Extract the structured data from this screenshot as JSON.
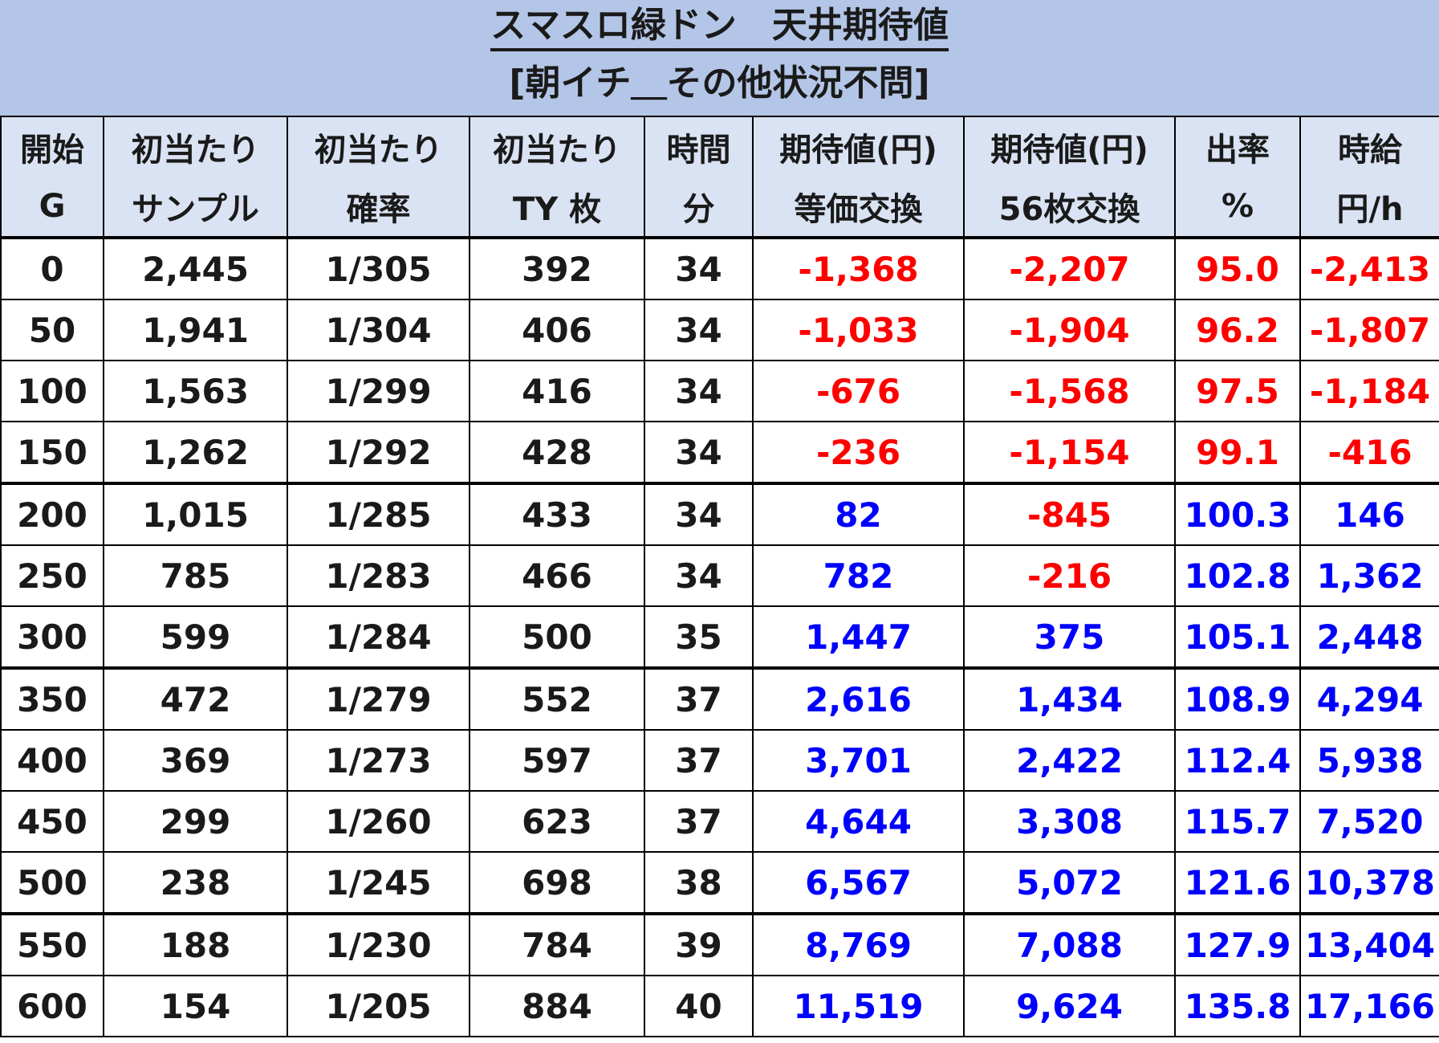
{
  "title": "スマスロ緑ドン　天井期待値",
  "subtitle": "[朝イチ＿その他状況不問]",
  "colors": {
    "header_bg": "#dae3f3",
    "title_bg": "#b4c6e7",
    "negative": "#ff0000",
    "positive": "#0000ff"
  },
  "columns": [
    {
      "line1": "開始",
      "line2": "G"
    },
    {
      "line1": "初当たり",
      "line2": "サンプル"
    },
    {
      "line1": "初当たり",
      "line2": "確率"
    },
    {
      "line1": "初当たり",
      "line2": "TY 枚"
    },
    {
      "line1": "時間",
      "line2": "分"
    },
    {
      "line1": "期待値(円)",
      "line2": "等価交換"
    },
    {
      "line1": "期待値(円)",
      "line2": "56枚交換"
    },
    {
      "line1": "出率",
      "line2": "%"
    },
    {
      "line1": "時給",
      "line2": "円/h"
    }
  ],
  "rows": [
    [
      "0",
      "2,445",
      "1/305",
      "392",
      "34",
      "-1,368",
      "-2,207",
      "95.0",
      "-2,413"
    ],
    [
      "50",
      "1,941",
      "1/304",
      "406",
      "34",
      "-1,033",
      "-1,904",
      "96.2",
      "-1,807"
    ],
    [
      "100",
      "1,563",
      "1/299",
      "416",
      "34",
      "-676",
      "-1,568",
      "97.5",
      "-1,184"
    ],
    [
      "150",
      "1,262",
      "1/292",
      "428",
      "34",
      "-236",
      "-1,154",
      "99.1",
      "-416"
    ],
    [
      "200",
      "1,015",
      "1/285",
      "433",
      "34",
      "82",
      "-845",
      "100.3",
      "146"
    ],
    [
      "250",
      "785",
      "1/283",
      "466",
      "34",
      "782",
      "-216",
      "102.8",
      "1,362"
    ],
    [
      "300",
      "599",
      "1/284",
      "500",
      "35",
      "1,447",
      "375",
      "105.1",
      "2,448"
    ],
    [
      "350",
      "472",
      "1/279",
      "552",
      "37",
      "2,616",
      "1,434",
      "108.9",
      "4,294"
    ],
    [
      "400",
      "369",
      "1/273",
      "597",
      "37",
      "3,701",
      "2,422",
      "112.4",
      "5,938"
    ],
    [
      "450",
      "299",
      "1/260",
      "623",
      "37",
      "4,644",
      "3,308",
      "115.7",
      "7,520"
    ],
    [
      "500",
      "238",
      "1/245",
      "698",
      "38",
      "6,567",
      "5,072",
      "121.6",
      "10,378"
    ],
    [
      "550",
      "188",
      "1/230",
      "784",
      "39",
      "8,769",
      "7,088",
      "127.9",
      "13,404"
    ],
    [
      "600",
      "154",
      "1/205",
      "884",
      "40",
      "11,519",
      "9,624",
      "135.8",
      "17,166"
    ]
  ]
}
